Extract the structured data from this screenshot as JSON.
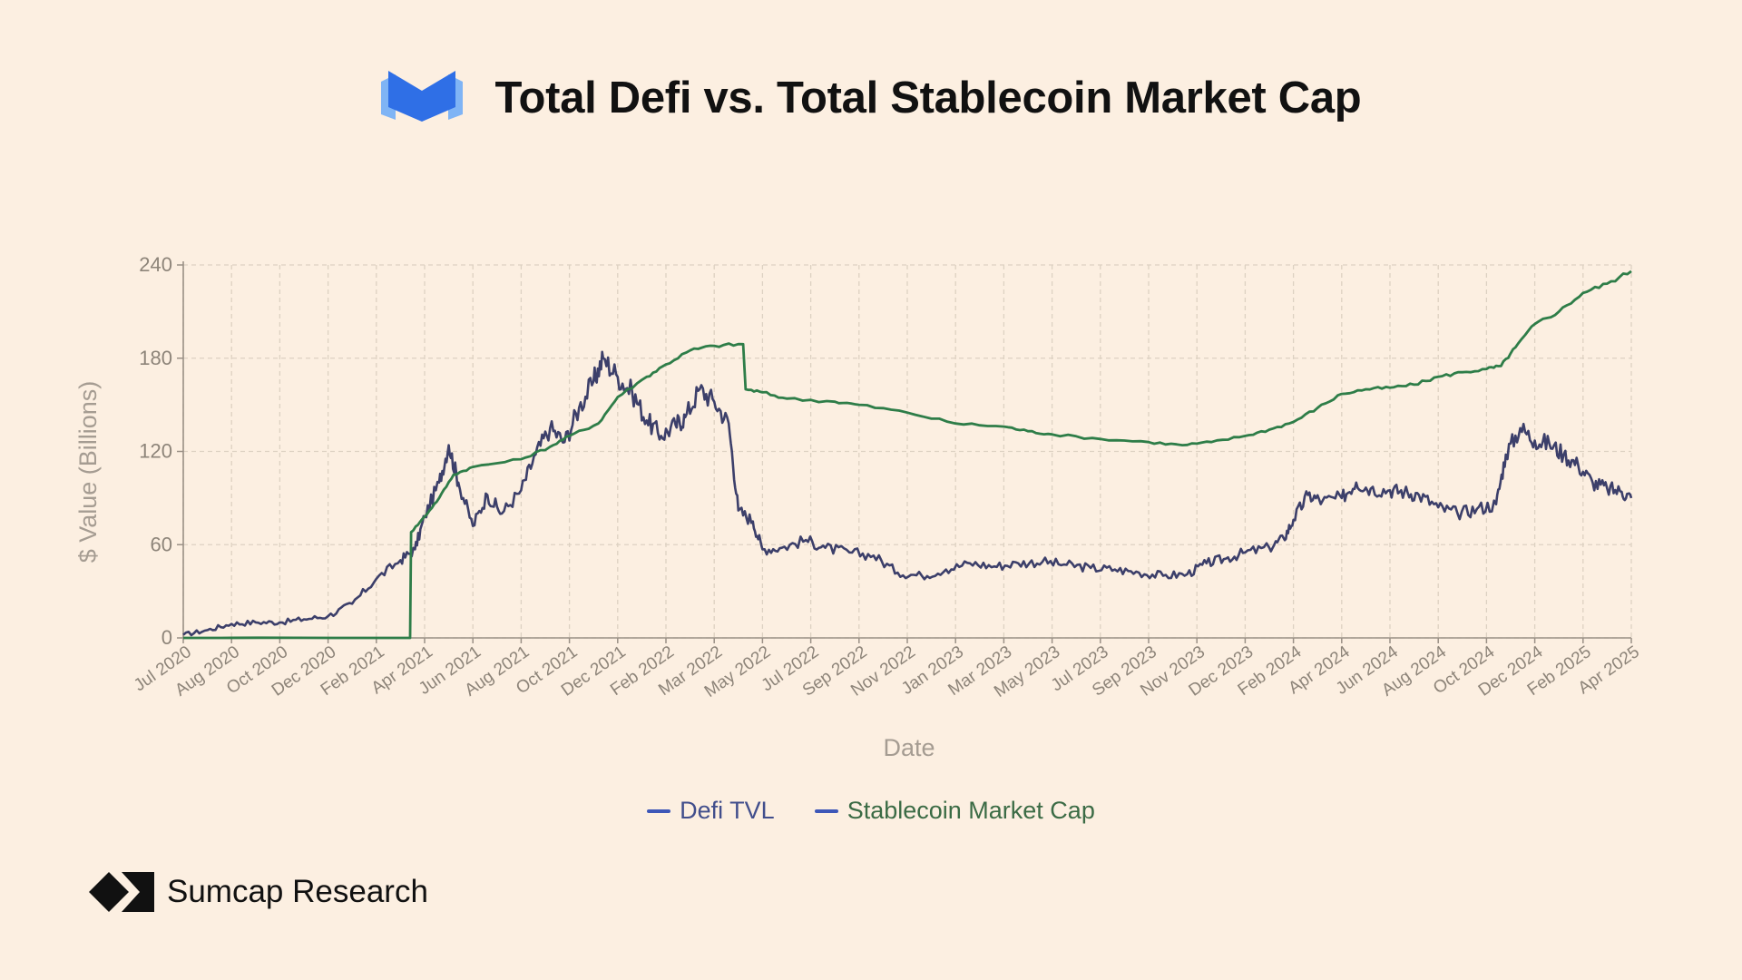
{
  "header": {
    "title": "Total Defi vs. Total Stablecoin Market Cap",
    "logo_icon": "blue-m-logo-icon"
  },
  "footer": {
    "brand": "Sumcap Research",
    "logo_icon": "sumcap-diamond-logo-icon"
  },
  "colors": {
    "background": "#fcefe1",
    "defi": "#3c3f6a",
    "stable": "#2e7d48",
    "defi_legend_text": "#414e8c",
    "stable_legend_text": "#3b6b45",
    "legend_swatch": "#3d57b8",
    "grid": "#ddd1c2",
    "axis": "#9a9086",
    "logo_dark": "#2f6fe6",
    "logo_light": "#7fb4f5"
  },
  "chart_data": {
    "type": "line",
    "title": "Total Defi vs. Total Stablecoin Market Cap",
    "xlabel": "Date",
    "ylabel": "$ Value (Billions)",
    "ylim": [
      0,
      240
    ],
    "yticks": [
      0,
      60,
      120,
      180,
      240
    ],
    "grid": true,
    "legend_position": "bottom-center",
    "x": [
      "Jul 2020",
      "Aug 2020",
      "Oct 2020",
      "Dec 2020",
      "Feb 2021",
      "Apr 2021",
      "Jun 2021",
      "Aug 2021",
      "Oct 2021",
      "Dec 2021",
      "Feb 2022",
      "Mar 2022",
      "May 2022",
      "Jul 2022",
      "Sep 2022",
      "Nov 2022",
      "Jan 2023",
      "Mar 2023",
      "May 2023",
      "Jul 2023",
      "Sep 2023",
      "Nov 2023",
      "Dec 2023",
      "Feb 2024",
      "Apr 2024",
      "Jun 2024",
      "Aug 2024",
      "Oct 2024",
      "Dec 2024",
      "Feb 2025",
      "Apr 2025"
    ],
    "series": [
      {
        "name": "Defi TVL",
        "values": [
          [
            0,
            2
          ],
          [
            0.5,
            5
          ],
          [
            1,
            9
          ],
          [
            1.5,
            10
          ],
          [
            2,
            10
          ],
          [
            2.5,
            12
          ],
          [
            3,
            14
          ],
          [
            3.5,
            22
          ],
          [
            4,
            38
          ],
          [
            4.5,
            50
          ],
          [
            4.8,
            57
          ],
          [
            5,
            78
          ],
          [
            5.3,
            100
          ],
          [
            5.5,
            124
          ],
          [
            5.7,
            100
          ],
          [
            6,
            72
          ],
          [
            6.3,
            92
          ],
          [
            6.6,
            80
          ],
          [
            7,
            95
          ],
          [
            7.3,
            118
          ],
          [
            7.6,
            135
          ],
          [
            7.9,
            126
          ],
          [
            8.2,
            148
          ],
          [
            8.5,
            165
          ],
          [
            8.7,
            180
          ],
          [
            9,
            168
          ],
          [
            9.3,
            158
          ],
          [
            9.6,
            140
          ],
          [
            9.9,
            130
          ],
          [
            10.2,
            137
          ],
          [
            10.4,
            142
          ],
          [
            10.7,
            160
          ],
          [
            11,
            152
          ],
          [
            11.3,
            138
          ],
          [
            11.5,
            82
          ],
          [
            11.8,
            75
          ],
          [
            12,
            57
          ],
          [
            12.4,
            58
          ],
          [
            12.9,
            63
          ],
          [
            13.3,
            58
          ],
          [
            13.8,
            55
          ],
          [
            14.3,
            53
          ],
          [
            14.8,
            42
          ],
          [
            15.3,
            40
          ],
          [
            15.8,
            44
          ],
          [
            16.3,
            48
          ],
          [
            16.8,
            46
          ],
          [
            17.3,
            48
          ],
          [
            17.8,
            49
          ],
          [
            18.3,
            47
          ],
          [
            18.8,
            45
          ],
          [
            19.3,
            44
          ],
          [
            19.8,
            42
          ],
          [
            20.3,
            40
          ],
          [
            20.8,
            41
          ],
          [
            21.2,
            48
          ],
          [
            21.6,
            51
          ],
          [
            22,
            55
          ],
          [
            22.5,
            58
          ],
          [
            22.8,
            64
          ],
          [
            23,
            76
          ],
          [
            23.3,
            92
          ],
          [
            23.6,
            88
          ],
          [
            24,
            90
          ],
          [
            24.3,
            100
          ],
          [
            24.6,
            96
          ],
          [
            25,
            95
          ],
          [
            25.3,
            94
          ],
          [
            25.6,
            92
          ],
          [
            26,
            84
          ],
          [
            26.4,
            80
          ],
          [
            26.8,
            83
          ],
          [
            27.2,
            86
          ],
          [
            27.4,
            118
          ],
          [
            27.7,
            135
          ],
          [
            28,
            127
          ],
          [
            28.3,
            125
          ],
          [
            28.6,
            118
          ],
          [
            28.9,
            111
          ],
          [
            29.2,
            100
          ],
          [
            29.5,
            96
          ],
          [
            29.8,
            94
          ],
          [
            30,
            90
          ]
        ]
      },
      {
        "name": "Stablecoin Market Cap",
        "values": [
          [
            0,
            0
          ],
          [
            4.7,
            0
          ],
          [
            4.72,
            68
          ],
          [
            5,
            78
          ],
          [
            5.3,
            90
          ],
          [
            5.6,
            105
          ],
          [
            6,
            110
          ],
          [
            7,
            115
          ],
          [
            7.6,
            123
          ],
          [
            8,
            130
          ],
          [
            8.6,
            138
          ],
          [
            9,
            155
          ],
          [
            9.6,
            168
          ],
          [
            10,
            176
          ],
          [
            10.5,
            185
          ],
          [
            11,
            188
          ],
          [
            11.6,
            189
          ],
          [
            11.65,
            160
          ],
          [
            12,
            158
          ],
          [
            12.5,
            154
          ],
          [
            13.5,
            152
          ],
          [
            14,
            150
          ],
          [
            15,
            145
          ],
          [
            16,
            138
          ],
          [
            17,
            136
          ],
          [
            17.5,
            133
          ],
          [
            18,
            131
          ],
          [
            19,
            128
          ],
          [
            20,
            126
          ],
          [
            20.7,
            124
          ],
          [
            21.3,
            126
          ],
          [
            22,
            130
          ],
          [
            22.5,
            134
          ],
          [
            23,
            139
          ],
          [
            23.5,
            148
          ],
          [
            24,
            157
          ],
          [
            24.5,
            160
          ],
          [
            25,
            161
          ],
          [
            25.5,
            163
          ],
          [
            26,
            168
          ],
          [
            26.5,
            171
          ],
          [
            27,
            173
          ],
          [
            27.3,
            175
          ],
          [
            27.6,
            187
          ],
          [
            28,
            202
          ],
          [
            28.5,
            210
          ],
          [
            29,
            222
          ],
          [
            29.5,
            228
          ],
          [
            30,
            236
          ]
        ]
      }
    ]
  }
}
